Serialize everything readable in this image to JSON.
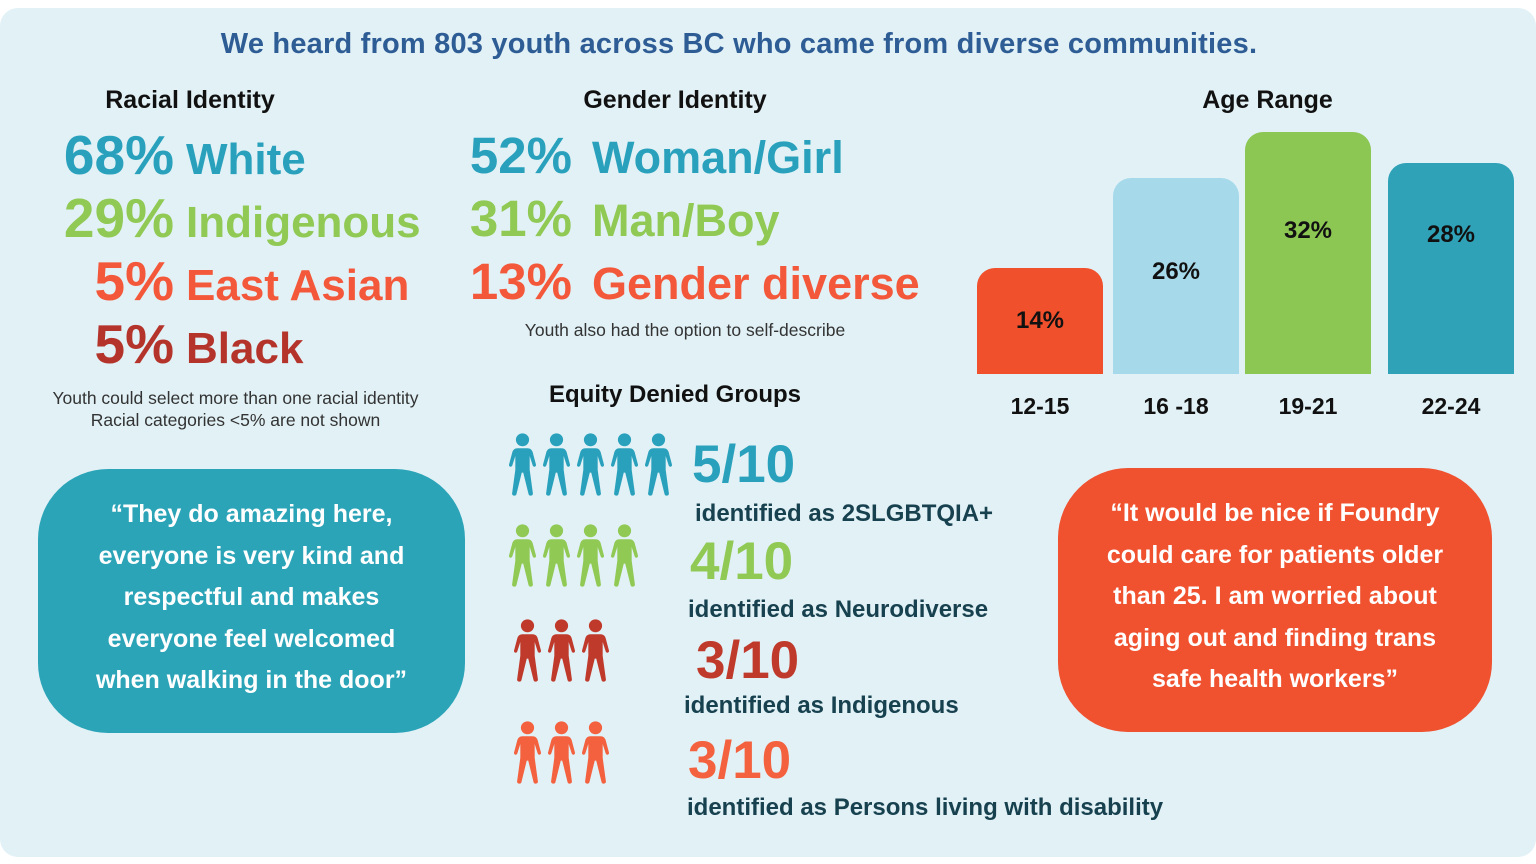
{
  "title": "We heard from 803 youth across BC who came from diverse communities.",
  "colors": {
    "page_bg": "#ffffff",
    "panel_bg": "#E1F1F6",
    "title": "#2E5C94",
    "heading": "#111111",
    "teal": "#2AA1BC",
    "green": "#90C954",
    "orange": "#F4583A",
    "dark_red": "#B4342B",
    "navy": "#17414F",
    "note": "#333333",
    "quote_left_bg": "#2CA4B8",
    "quote_right_bg": "#F0512F"
  },
  "racial": {
    "heading": "Racial Identity",
    "items": [
      {
        "pct": "68%",
        "label": "White",
        "color": "#2AA1BC"
      },
      {
        "pct": "29%",
        "label": "Indigenous",
        "color": "#90C954"
      },
      {
        "pct": "5%",
        "label": "East Asian",
        "color": "#F4583A"
      },
      {
        "pct": "5%",
        "label": "Black",
        "color": "#B4342B"
      }
    ],
    "note_lines": [
      "Youth could select more than one racial identity",
      "Racial categories <5% are not shown"
    ]
  },
  "gender": {
    "heading": "Gender Identity",
    "items": [
      {
        "pct": "52%",
        "label": "Woman/Girl",
        "color": "#2AA1BC"
      },
      {
        "pct": "31%",
        "label": "Man/Boy",
        "color": "#90C954"
      },
      {
        "pct": "13%",
        "label": "Gender diverse",
        "color": "#F4583A"
      }
    ],
    "note": "Youth also had the option to self-describe"
  },
  "age": {
    "heading": "Age Range"
  },
  "chart_data": {
    "type": "bar",
    "title": "Age Range",
    "categories": [
      "12-15",
      "16 -18",
      "19-21",
      "22-24"
    ],
    "values": [
      14,
      26,
      32,
      28
    ],
    "value_labels": [
      "14%",
      "26%",
      "32%",
      "28%"
    ],
    "bar_colors": [
      "#F0502C",
      "#A6D9EA",
      "#8CC653",
      "#2FA2B8"
    ],
    "xlabel": "",
    "ylabel": "",
    "ylim": [
      0,
      35
    ],
    "grid": false,
    "legend": false
  },
  "equity": {
    "heading": "Equity Denied Groups",
    "label_color": "#17414F",
    "rows": [
      {
        "count": 5,
        "total": 10,
        "fraction": "5/10",
        "label": "identified as 2SLGBTQIA+",
        "color": "#2AA1BC"
      },
      {
        "count": 4,
        "total": 10,
        "fraction": "4/10",
        "label": "identified as Neurodiverse",
        "color": "#90C954"
      },
      {
        "count": 3,
        "total": 10,
        "fraction": "3/10",
        "label": "identified as Indigenous",
        "color": "#C03A2C"
      },
      {
        "count": 3,
        "total": 10,
        "fraction": "3/10",
        "label": "identified as Persons living with disability",
        "color": "#F4613E"
      }
    ]
  },
  "quotes": {
    "left": {
      "bg": "#2CA4B8",
      "lines": [
        "“They do amazing here,",
        "everyone is very kind and",
        "respectful and makes",
        "everyone feel welcomed",
        "when walking in the door”"
      ]
    },
    "right": {
      "bg": "#F0512F",
      "lines": [
        "“It would be nice if Foundry",
        "could care for patients older",
        "than 25. I am worried about",
        "aging out and finding trans",
        "safe health workers”"
      ]
    }
  }
}
